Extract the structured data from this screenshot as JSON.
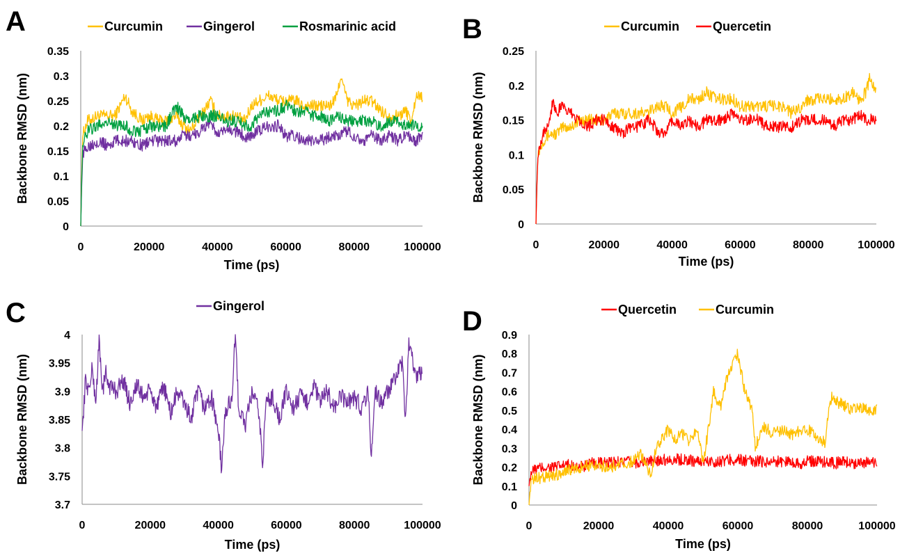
{
  "chart_data": [
    {
      "panel": "A",
      "type": "line",
      "xlabel": "Time (ps)",
      "ylabel": "Backbone RMSD (nm)",
      "xlim": [
        0,
        100000
      ],
      "ylim": [
        0,
        0.35
      ],
      "xticks": [
        "0",
        "20000",
        "40000",
        "60000",
        "80000",
        "100000"
      ],
      "yticks": [
        "0",
        "0.05",
        "0.1",
        "0.15",
        "0.2",
        "0.25",
        "0.3",
        "0.35"
      ],
      "legend_position": "top",
      "series": [
        {
          "name": "Curcumin",
          "color": "#FFC000",
          "x": [
            0,
            500,
            2000,
            5000,
            8000,
            10000,
            13000,
            15000,
            18000,
            20000,
            23000,
            25000,
            28000,
            30000,
            32000,
            35000,
            38000,
            40000,
            42000,
            45000,
            48000,
            50000,
            52000,
            55000,
            58000,
            60000,
            63000,
            65000,
            68000,
            70000,
            73000,
            75000,
            76000,
            78000,
            80000,
            83000,
            85000,
            88000,
            90000,
            93000,
            95000,
            97000,
            98000,
            100000
          ],
          "y": [
            0,
            0.18,
            0.21,
            0.22,
            0.22,
            0.22,
            0.26,
            0.23,
            0.21,
            0.22,
            0.21,
            0.21,
            0.22,
            0.2,
            0.19,
            0.22,
            0.25,
            0.22,
            0.22,
            0.22,
            0.21,
            0.24,
            0.25,
            0.26,
            0.25,
            0.25,
            0.25,
            0.24,
            0.24,
            0.24,
            0.24,
            0.26,
            0.3,
            0.25,
            0.24,
            0.25,
            0.25,
            0.23,
            0.22,
            0.22,
            0.23,
            0.21,
            0.26,
            0.26
          ]
        },
        {
          "name": "Gingerol",
          "color": "#7030A0",
          "x": [
            0,
            500,
            2000,
            5000,
            8000,
            10000,
            13000,
            15000,
            18000,
            20000,
            23000,
            25000,
            28000,
            30000,
            32000,
            35000,
            38000,
            40000,
            42000,
            45000,
            48000,
            50000,
            52000,
            55000,
            58000,
            60000,
            63000,
            65000,
            68000,
            70000,
            73000,
            75000,
            78000,
            80000,
            83000,
            85000,
            88000,
            90000,
            93000,
            95000,
            98000,
            100000
          ],
          "y": [
            0,
            0.14,
            0.16,
            0.17,
            0.16,
            0.17,
            0.17,
            0.17,
            0.16,
            0.17,
            0.17,
            0.17,
            0.17,
            0.18,
            0.18,
            0.19,
            0.21,
            0.18,
            0.19,
            0.19,
            0.18,
            0.18,
            0.19,
            0.2,
            0.2,
            0.18,
            0.18,
            0.17,
            0.17,
            0.17,
            0.18,
            0.18,
            0.19,
            0.18,
            0.17,
            0.18,
            0.17,
            0.18,
            0.17,
            0.18,
            0.17,
            0.18
          ]
        },
        {
          "name": "Rosmarinic acid",
          "color": "#00A040",
          "x": [
            0,
            500,
            2000,
            5000,
            8000,
            10000,
            13000,
            15000,
            18000,
            20000,
            23000,
            25000,
            28000,
            30000,
            32000,
            35000,
            38000,
            40000,
            42000,
            45000,
            48000,
            50000,
            52000,
            55000,
            58000,
            60000,
            63000,
            65000,
            68000,
            70000,
            73000,
            75000,
            78000,
            80000,
            83000,
            85000,
            88000,
            90000,
            93000,
            95000,
            98000,
            100000
          ],
          "y": [
            0,
            0.16,
            0.19,
            0.2,
            0.21,
            0.2,
            0.2,
            0.19,
            0.19,
            0.2,
            0.2,
            0.2,
            0.24,
            0.22,
            0.21,
            0.22,
            0.22,
            0.22,
            0.21,
            0.21,
            0.2,
            0.2,
            0.22,
            0.23,
            0.23,
            0.24,
            0.23,
            0.23,
            0.22,
            0.22,
            0.21,
            0.22,
            0.21,
            0.21,
            0.21,
            0.21,
            0.2,
            0.21,
            0.21,
            0.2,
            0.2,
            0.2
          ]
        }
      ]
    },
    {
      "panel": "B",
      "type": "line",
      "xlabel": "Time (ps)",
      "ylabel": "Backbone  RMSD (nm)",
      "xlim": [
        0,
        100000
      ],
      "ylim": [
        0,
        0.25
      ],
      "xticks": [
        "0",
        "20000",
        "40000",
        "60000",
        "80000",
        "100000"
      ],
      "yticks": [
        "0",
        "0.05",
        "0.1",
        "0.15",
        "0.2",
        "0.25"
      ],
      "legend_position": "top",
      "series": [
        {
          "name": "Curcumin",
          "color": "#FFC000",
          "x": [
            0,
            500,
            2000,
            4000,
            6000,
            8000,
            10000,
            13000,
            15000,
            18000,
            20000,
            23000,
            25000,
            28000,
            30000,
            33000,
            35000,
            38000,
            40000,
            43000,
            45000,
            48000,
            50000,
            53000,
            55000,
            58000,
            60000,
            63000,
            65000,
            68000,
            70000,
            73000,
            75000,
            78000,
            80000,
            83000,
            85000,
            88000,
            90000,
            93000,
            95000,
            97000,
            98000,
            100000
          ],
          "y": [
            0,
            0.1,
            0.12,
            0.13,
            0.13,
            0.14,
            0.14,
            0.15,
            0.15,
            0.15,
            0.15,
            0.16,
            0.16,
            0.16,
            0.16,
            0.16,
            0.17,
            0.17,
            0.16,
            0.17,
            0.18,
            0.18,
            0.19,
            0.18,
            0.18,
            0.18,
            0.17,
            0.17,
            0.17,
            0.17,
            0.17,
            0.17,
            0.16,
            0.17,
            0.18,
            0.18,
            0.18,
            0.18,
            0.18,
            0.19,
            0.18,
            0.19,
            0.21,
            0.19
          ]
        },
        {
          "name": "Quercetin",
          "color": "#FF0000",
          "x": [
            0,
            500,
            2000,
            4000,
            5000,
            6000,
            8000,
            10000,
            13000,
            15000,
            18000,
            20000,
            23000,
            25000,
            28000,
            30000,
            33000,
            35000,
            36000,
            38000,
            40000,
            43000,
            45000,
            48000,
            50000,
            53000,
            55000,
            58000,
            60000,
            63000,
            65000,
            68000,
            70000,
            73000,
            75000,
            78000,
            80000,
            83000,
            85000,
            88000,
            90000,
            93000,
            95000,
            97000,
            100000
          ],
          "y": [
            0,
            0.1,
            0.13,
            0.15,
            0.18,
            0.16,
            0.17,
            0.16,
            0.15,
            0.14,
            0.15,
            0.15,
            0.14,
            0.13,
            0.14,
            0.14,
            0.15,
            0.14,
            0.13,
            0.13,
            0.15,
            0.14,
            0.15,
            0.14,
            0.15,
            0.15,
            0.15,
            0.16,
            0.15,
            0.15,
            0.15,
            0.14,
            0.14,
            0.14,
            0.14,
            0.15,
            0.15,
            0.15,
            0.15,
            0.14,
            0.15,
            0.15,
            0.16,
            0.15,
            0.15
          ]
        }
      ]
    },
    {
      "panel": "C",
      "type": "line",
      "xlabel": "Time (ps)",
      "ylabel": "Backbone  RMSD (nm)",
      "xlim": [
        0,
        100000
      ],
      "ylim": [
        3.7,
        4.0
      ],
      "xticks": [
        "0",
        "20000",
        "40000",
        "60000",
        "80000",
        "100000"
      ],
      "yticks": [
        "3.7",
        "3.75",
        "3.8",
        "3.85",
        "3.9",
        "3.95",
        "4"
      ],
      "legend_position": "top",
      "series": [
        {
          "name": "Gingerol",
          "color": "#7030A0",
          "x": [
            0,
            1000,
            2000,
            3000,
            4000,
            5000,
            6000,
            7000,
            8000,
            10000,
            12000,
            14000,
            16000,
            18000,
            20000,
            22000,
            24000,
            26000,
            28000,
            30000,
            32000,
            34000,
            36000,
            38000,
            40000,
            41000,
            42000,
            44000,
            45000,
            46000,
            48000,
            50000,
            52000,
            53000,
            54000,
            56000,
            58000,
            60000,
            62000,
            64000,
            66000,
            68000,
            70000,
            72000,
            74000,
            76000,
            78000,
            80000,
            82000,
            84000,
            85000,
            86000,
            88000,
            90000,
            92000,
            94000,
            95000,
            96000,
            98000,
            100000
          ],
          "y": [
            3.83,
            3.92,
            3.9,
            3.94,
            3.88,
            3.99,
            3.9,
            3.93,
            3.91,
            3.9,
            3.92,
            3.88,
            3.91,
            3.89,
            3.9,
            3.87,
            3.91,
            3.86,
            3.9,
            3.88,
            3.85,
            3.9,
            3.87,
            3.89,
            3.83,
            3.76,
            3.86,
            3.89,
            4.0,
            3.87,
            3.84,
            3.9,
            3.86,
            3.77,
            3.88,
            3.89,
            3.85,
            3.9,
            3.87,
            3.89,
            3.88,
            3.91,
            3.88,
            3.9,
            3.87,
            3.89,
            3.88,
            3.89,
            3.87,
            3.9,
            3.78,
            3.9,
            3.88,
            3.9,
            3.92,
            3.95,
            3.85,
            3.98,
            3.93,
            3.93
          ]
        }
      ]
    },
    {
      "panel": "D",
      "type": "line",
      "xlabel": "Time (ps)",
      "ylabel": "Backbone  RMSD (nm)",
      "xlim": [
        0,
        100000
      ],
      "ylim": [
        0,
        0.9
      ],
      "xticks": [
        "0",
        "20000",
        "40000",
        "60000",
        "80000",
        "100000"
      ],
      "yticks": [
        "0",
        "0.1",
        "0.2",
        "0.3",
        "0.4",
        "0.5",
        "0.6",
        "0.7",
        "0.8",
        "0.9"
      ],
      "legend_position": "top",
      "series": [
        {
          "name": "Quercetin",
          "color": "#FF0000",
          "x": [
            0,
            500,
            2000,
            5000,
            8000,
            10000,
            13000,
            15000,
            18000,
            20000,
            23000,
            25000,
            28000,
            30000,
            33000,
            35000,
            38000,
            40000,
            43000,
            45000,
            48000,
            50000,
            53000,
            55000,
            58000,
            60000,
            63000,
            65000,
            68000,
            70000,
            73000,
            75000,
            78000,
            80000,
            83000,
            85000,
            88000,
            90000,
            93000,
            95000,
            98000,
            100000
          ],
          "y": [
            0.1,
            0.17,
            0.19,
            0.2,
            0.2,
            0.21,
            0.21,
            0.2,
            0.22,
            0.22,
            0.22,
            0.23,
            0.23,
            0.22,
            0.23,
            0.23,
            0.24,
            0.24,
            0.24,
            0.24,
            0.23,
            0.23,
            0.23,
            0.23,
            0.24,
            0.24,
            0.23,
            0.23,
            0.23,
            0.23,
            0.23,
            0.23,
            0.22,
            0.23,
            0.23,
            0.23,
            0.22,
            0.23,
            0.22,
            0.23,
            0.22,
            0.22
          ]
        },
        {
          "name": "Curcumin",
          "color": "#FFC000",
          "x": [
            0,
            500,
            2000,
            5000,
            8000,
            10000,
            13000,
            15000,
            18000,
            20000,
            23000,
            25000,
            28000,
            30000,
            32000,
            34000,
            35000,
            36000,
            38000,
            40000,
            42000,
            44000,
            46000,
            48000,
            49000,
            50000,
            52000,
            53000,
            55000,
            57000,
            58000,
            59000,
            60000,
            61000,
            62000,
            63000,
            64000,
            65000,
            67000,
            70000,
            73000,
            75000,
            78000,
            80000,
            83000,
            85000,
            86000,
            87000,
            88000,
            90000,
            93000,
            95000,
            97000,
            100000
          ],
          "y": [
            0,
            0.12,
            0.14,
            0.15,
            0.16,
            0.18,
            0.19,
            0.2,
            0.21,
            0.21,
            0.2,
            0.21,
            0.22,
            0.23,
            0.27,
            0.2,
            0.16,
            0.26,
            0.35,
            0.4,
            0.34,
            0.38,
            0.33,
            0.4,
            0.35,
            0.22,
            0.45,
            0.6,
            0.52,
            0.68,
            0.72,
            0.78,
            0.8,
            0.7,
            0.6,
            0.55,
            0.52,
            0.3,
            0.42,
            0.38,
            0.4,
            0.37,
            0.39,
            0.4,
            0.36,
            0.33,
            0.5,
            0.58,
            0.55,
            0.53,
            0.5,
            0.52,
            0.5,
            0.5
          ]
        }
      ]
    }
  ]
}
